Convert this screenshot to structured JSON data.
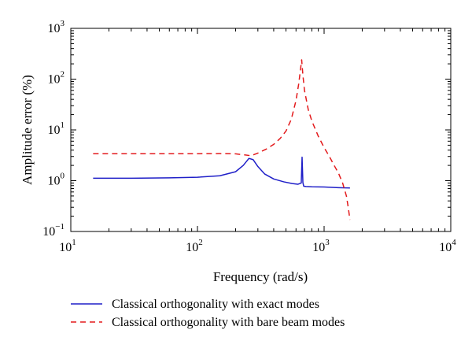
{
  "chart_data": {
    "type": "line",
    "title": "",
    "xlabel": "Frequency (rad/s)",
    "ylabel": "Amplitude error (%)",
    "xscale": "log",
    "yscale": "log",
    "xlim": [
      10,
      10000
    ],
    "ylim": [
      0.1,
      1000
    ],
    "grid": false,
    "legend_placement": "bottom",
    "x_ticks": [
      {
        "base": "10",
        "exp": "1",
        "value": 10
      },
      {
        "base": "10",
        "exp": "2",
        "value": 100
      },
      {
        "base": "10",
        "exp": "3",
        "value": 1000
      },
      {
        "base": "10",
        "exp": "4",
        "value": 10000
      }
    ],
    "y_ticks": [
      {
        "base": "10",
        "exp": "−1",
        "value": 0.1
      },
      {
        "base": "10",
        "exp": "0",
        "value": 1
      },
      {
        "base": "10",
        "exp": "1",
        "value": 10
      },
      {
        "base": "10",
        "exp": "2",
        "value": 100
      },
      {
        "base": "10",
        "exp": "3",
        "value": 1000
      }
    ],
    "series": [
      {
        "name": "Classical orthogonality with exact modes",
        "color": "#1f1fc8",
        "style": "solid",
        "x": [
          15,
          30,
          60,
          100,
          150,
          200,
          230,
          255,
          275,
          300,
          340,
          400,
          480,
          560,
          620,
          660,
          670,
          680,
          690,
          720,
          800,
          1000,
          1300,
          1600
        ],
        "y": [
          1.12,
          1.12,
          1.14,
          1.17,
          1.25,
          1.5,
          2.0,
          2.75,
          2.6,
          1.9,
          1.35,
          1.08,
          0.95,
          0.88,
          0.85,
          0.9,
          2.9,
          0.92,
          0.78,
          0.77,
          0.76,
          0.75,
          0.73,
          0.72
        ]
      },
      {
        "name": "Classical orthogonality with bare beam modes",
        "color": "#e31a1c",
        "style": "dashed",
        "x": [
          15,
          50,
          100,
          150,
          200,
          240,
          265,
          300,
          350,
          400,
          450,
          500,
          550,
          600,
          630,
          650,
          665,
          680,
          700,
          750,
          800,
          900,
          1000,
          1100,
          1200,
          1300,
          1400,
          1500,
          1550,
          1600
        ],
        "y": [
          3.4,
          3.4,
          3.4,
          3.42,
          3.38,
          3.2,
          3.1,
          3.5,
          4.2,
          5.2,
          6.8,
          9.5,
          16,
          38,
          80,
          150,
          240,
          120,
          60,
          25,
          15,
          7.5,
          4.5,
          3.0,
          2.0,
          1.4,
          0.9,
          0.5,
          0.3,
          0.17
        ]
      }
    ]
  }
}
